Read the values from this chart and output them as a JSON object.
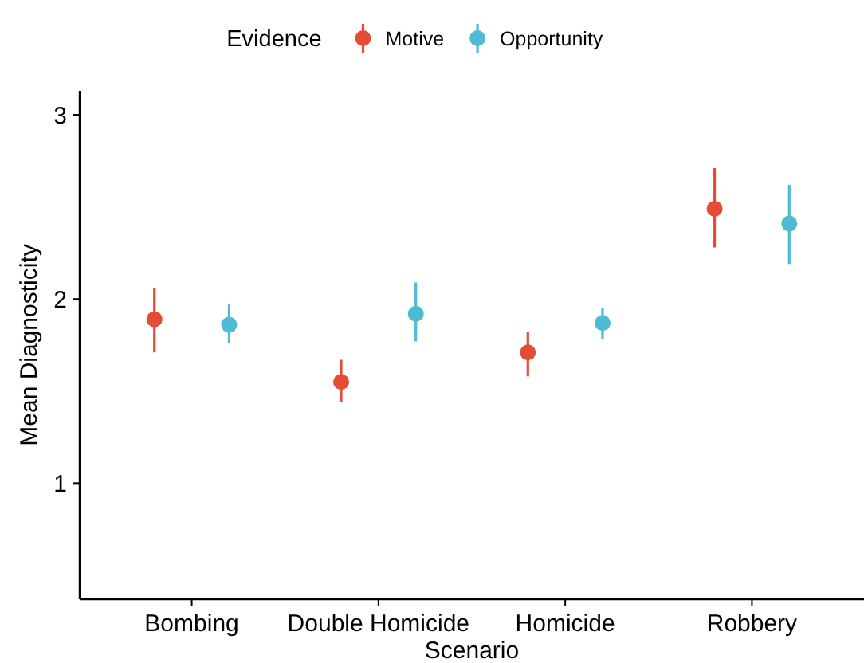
{
  "chart_data": {
    "type": "scatter",
    "xlabel": "Scenario",
    "ylabel": "Mean Diagnosticity",
    "legend_title": "Evidence",
    "legend": "top",
    "grid": false,
    "marker": "circle",
    "categories": [
      "Bombing",
      "Double Homicide",
      "Homicide",
      "Robbery"
    ],
    "ylim": [
      0.37,
      3.13
    ],
    "yticks": [
      1,
      2,
      3
    ],
    "series": [
      {
        "name": "Motive",
        "color": "#e64b35",
        "values": [
          1.89,
          1.55,
          1.71,
          2.49
        ],
        "errors": [
          [
            1.71,
            2.06
          ],
          [
            1.44,
            1.67
          ],
          [
            1.58,
            1.82
          ],
          [
            2.28,
            2.71
          ]
        ]
      },
      {
        "name": "Opportunity",
        "color": "#4dbbd5",
        "values": [
          1.86,
          1.92,
          1.87,
          2.41
        ],
        "errors": [
          [
            1.76,
            1.97
          ],
          [
            1.77,
            2.09
          ],
          [
            1.78,
            1.95
          ],
          [
            2.19,
            2.62
          ]
        ]
      }
    ]
  }
}
